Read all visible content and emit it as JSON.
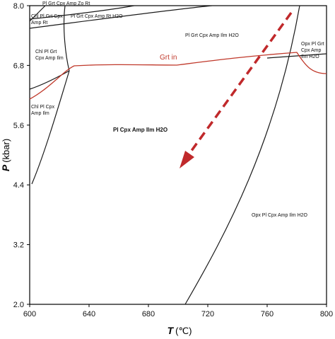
{
  "axes": {
    "x_title_symbol": "T",
    "x_title_unit": "(℃)",
    "y_title_symbol": "P",
    "y_title_unit": "(kbar)",
    "x_ticks": [
      "600",
      "640",
      "680",
      "720",
      "760",
      "800"
    ],
    "y_ticks": [
      "2.0",
      "3.2",
      "4.4",
      "5.6",
      "6.8",
      "8.0"
    ]
  },
  "fields": {
    "top_left_a": "Pl Grt Cpx Amp Zo Rt",
    "top_left_b1": "Chl Pl Grt Cpx",
    "top_left_b2": "Amp Rt",
    "top_band": "Pl Grt Cpx Amp Rt H2O",
    "upper_centre": "Pl Grt Cpx Amp Ilm H2O",
    "left_upper_1": "Chl Pl Grt",
    "left_upper_2": "Cpx Amp Ilm",
    "left_lower_1": "Chl Pl Cpx",
    "left_lower_2": "Amp Ilm",
    "centre": "Pl Cpx Amp Ilm H2O",
    "right_upper_1": "Opx Pl Grt",
    "right_upper_2": "Cpx Amp",
    "right_upper_3": "Ilm H2O",
    "lower_right": "Opx Pl Cpx Amp Ilm H2O"
  },
  "reaction_lines": {
    "garnet_in": "Grt in"
  },
  "colors": {
    "boundary": "#1a1a1a",
    "garnet_in_line": "#c0392b",
    "pt_path_arrow": "#c0292b"
  }
}
